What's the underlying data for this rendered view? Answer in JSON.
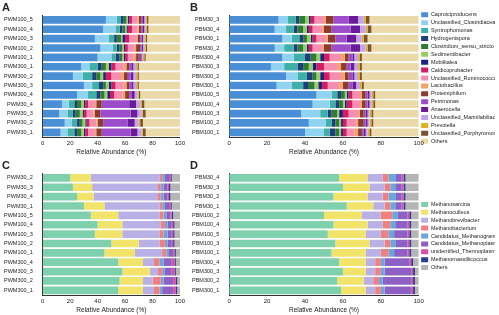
{
  "chart_data": [
    {
      "type": "bar",
      "title": "A",
      "orientation": "horizontal",
      "stacked": true,
      "grid": false,
      "x_label": "Relative Abundance (%)",
      "xlim": [
        0,
        100
      ],
      "xticks": [
        0,
        20,
        40,
        60,
        80,
        100
      ],
      "categories": [
        "PWM100_5",
        "PWM100_4",
        "PWM100_3",
        "PWM100_2",
        "PWM100_1",
        "PWM300_1",
        "PWM300_2",
        "PWM300_3",
        "PWM300_4",
        "PWM30_4",
        "PWM30_3",
        "PWM30_2",
        "PWM30_1"
      ],
      "series": [
        {
          "name": "Caproiciproducens",
          "color": "#4a8fd6",
          "values": [
            46,
            44,
            38,
            42,
            40,
            28,
            22,
            30,
            25,
            14,
            12,
            16,
            13
          ]
        },
        {
          "name": "Unclassified_Clostridiaceae_1",
          "color": "#8fd3f0",
          "values": [
            8,
            9,
            10,
            9,
            10,
            6,
            7,
            6,
            8,
            5,
            6,
            5,
            5
          ]
        },
        {
          "name": "Syntrophomonas",
          "color": "#3fb0a8",
          "values": [
            3,
            3,
            4,
            3,
            3,
            6,
            7,
            5,
            6,
            4,
            4,
            4,
            5
          ]
        },
        {
          "name": "Hydrogenispora",
          "color": "#1f3f7a",
          "values": [
            2,
            2,
            2,
            2,
            3,
            3,
            3,
            3,
            3,
            2,
            2,
            2,
            2
          ]
        },
        {
          "name": "Clostridium_sensu_stricto",
          "color": "#2e7d32",
          "values": [
            2,
            2,
            3,
            2,
            2,
            3,
            3,
            2,
            3,
            3,
            3,
            2,
            3
          ]
        },
        {
          "name": "Sedimentibacter",
          "color": "#9ccc65",
          "values": [
            1,
            1,
            1,
            1,
            1,
            2,
            2,
            2,
            2,
            2,
            2,
            2,
            2
          ]
        },
        {
          "name": "Mobilitalea",
          "color": "#1a237e",
          "values": [
            1,
            1,
            2,
            1,
            1,
            2,
            2,
            2,
            2,
            1,
            1,
            1,
            1
          ]
        },
        {
          "name": "Caldicoprobacter",
          "color": "#d81b60",
          "values": [
            2,
            3,
            3,
            2,
            2,
            3,
            4,
            3,
            3,
            2,
            2,
            2,
            2
          ]
        },
        {
          "name": "Unclassified_Ruminococcaceae",
          "color": "#f48fb1",
          "values": [
            4,
            4,
            5,
            5,
            4,
            6,
            7,
            6,
            6,
            5,
            5,
            5,
            5
          ]
        },
        {
          "name": "Lactobacillus",
          "color": "#f4a261",
          "values": [
            1,
            1,
            1,
            1,
            2,
            2,
            2,
            2,
            2,
            1,
            1,
            1,
            1
          ]
        },
        {
          "name": "Proteiniphilum",
          "color": "#8d3b2f",
          "values": [
            2,
            2,
            2,
            3,
            2,
            2,
            3,
            2,
            3,
            4,
            4,
            4,
            4
          ]
        },
        {
          "name": "Petrimonas",
          "color": "#9c4dcc",
          "values": [
            1,
            1,
            1,
            1,
            1,
            2,
            2,
            2,
            2,
            20,
            22,
            18,
            21
          ]
        },
        {
          "name": "Anaerocella",
          "color": "#6a1b9a",
          "values": [
            1,
            1,
            1,
            1,
            1,
            1,
            2,
            1,
            2,
            5,
            5,
            5,
            5
          ]
        },
        {
          "name": "Unclassified_Marinilabiliaceae",
          "color": "#c5a3e8",
          "values": [
            1,
            1,
            1,
            1,
            1,
            2,
            2,
            2,
            2,
            3,
            3,
            3,
            3
          ]
        },
        {
          "name": "Prevotella",
          "color": "#e0b020",
          "values": [
            1,
            1,
            1,
            1,
            1,
            1,
            1,
            1,
            1,
            1,
            1,
            1,
            1
          ]
        },
        {
          "name": "Unclassified_Porphyromonadaceae",
          "color": "#7a5230",
          "values": [
            1,
            1,
            1,
            1,
            1,
            1,
            1,
            1,
            1,
            2,
            2,
            2,
            2
          ]
        },
        {
          "name": "Others",
          "color": "#ead9a9",
          "values": [
            23,
            23,
            24,
            24,
            25,
            30,
            30,
            30,
            29,
            26,
            25,
            27,
            25
          ]
        }
      ]
    },
    {
      "type": "bar",
      "title": "B",
      "orientation": "horizontal",
      "stacked": true,
      "grid": false,
      "legend": "right",
      "x_label": "Relative Abundance (%)",
      "xlim": [
        0,
        100
      ],
      "xticks": [
        0,
        20,
        40,
        60,
        80,
        100
      ],
      "categories": [
        "PBM30_3",
        "PBM30_4",
        "PBM30_1",
        "PBM30_2",
        "PBM300_4",
        "PBM300_3",
        "PBM300_2",
        "PBM300_1",
        "PBM100_5",
        "PBM100_4",
        "PBM100_3",
        "PBM100_2",
        "PBM100_1"
      ],
      "series": [
        {
          "name": "Caproiciproducens",
          "color": "#4a8fd6",
          "values": [
            26,
            24,
            28,
            24,
            28,
            22,
            30,
            25,
            46,
            44,
            38,
            42,
            40
          ]
        },
        {
          "name": "Unclassified_Clostridiaceae_1",
          "color": "#8fd3f0",
          "values": [
            5,
            6,
            5,
            5,
            6,
            7,
            6,
            8,
            8,
            9,
            10,
            9,
            10
          ]
        },
        {
          "name": "Syntrophomonas",
          "color": "#3fb0a8",
          "values": [
            4,
            4,
            4,
            5,
            6,
            7,
            5,
            6,
            3,
            3,
            4,
            3,
            3
          ]
        },
        {
          "name": "Hydrogenispora",
          "color": "#1f3f7a",
          "values": [
            2,
            2,
            2,
            2,
            3,
            3,
            3,
            3,
            2,
            2,
            2,
            2,
            3
          ]
        },
        {
          "name": "Clostridium_sensu_stricto",
          "color": "#2e7d32",
          "values": [
            3,
            3,
            2,
            3,
            3,
            3,
            2,
            3,
            2,
            2,
            3,
            2,
            2
          ]
        },
        {
          "name": "Sedimentibacter",
          "color": "#9ccc65",
          "values": [
            2,
            2,
            2,
            2,
            2,
            2,
            2,
            2,
            1,
            1,
            1,
            1,
            1
          ]
        },
        {
          "name": "Mobilitalea",
          "color": "#1a237e",
          "values": [
            1,
            1,
            1,
            1,
            2,
            2,
            2,
            2,
            1,
            1,
            2,
            1,
            1
          ]
        },
        {
          "name": "Caldicoprobacter",
          "color": "#d81b60",
          "values": [
            2,
            2,
            2,
            2,
            3,
            4,
            3,
            3,
            2,
            3,
            3,
            2,
            2
          ]
        },
        {
          "name": "Unclassified_Ruminococcaceae",
          "color": "#f48fb1",
          "values": [
            5,
            5,
            5,
            5,
            6,
            7,
            6,
            6,
            4,
            4,
            5,
            5,
            4
          ]
        },
        {
          "name": "Lactobacillus",
          "color": "#f4a261",
          "values": [
            1,
            1,
            1,
            1,
            2,
            2,
            2,
            2,
            1,
            1,
            1,
            1,
            2
          ]
        },
        {
          "name": "Proteiniphilum",
          "color": "#8d3b2f",
          "values": [
            4,
            4,
            4,
            4,
            2,
            3,
            2,
            3,
            2,
            2,
            2,
            3,
            2
          ]
        },
        {
          "name": "Petrimonas",
          "color": "#9c4dcc",
          "values": [
            8,
            10,
            6,
            10,
            2,
            2,
            2,
            2,
            1,
            1,
            1,
            1,
            1
          ]
        },
        {
          "name": "Anaerocella",
          "color": "#6a1b9a",
          "values": [
            5,
            5,
            5,
            5,
            1,
            2,
            1,
            2,
            1,
            1,
            1,
            1,
            1
          ]
        },
        {
          "name": "Unclassified_Marinilabiliaceae",
          "color": "#c5a3e8",
          "values": [
            3,
            3,
            3,
            3,
            2,
            2,
            2,
            2,
            1,
            1,
            1,
            1,
            1
          ]
        },
        {
          "name": "Prevotella",
          "color": "#e0b020",
          "values": [
            1,
            1,
            1,
            1,
            1,
            1,
            1,
            1,
            1,
            1,
            1,
            1,
            1
          ]
        },
        {
          "name": "Unclassified_Porphyromonadaceae",
          "color": "#7a5230",
          "values": [
            2,
            2,
            2,
            2,
            1,
            1,
            1,
            1,
            1,
            1,
            1,
            1,
            1
          ]
        },
        {
          "name": "Others",
          "color": "#ead9a9",
          "values": [
            26,
            25,
            27,
            25,
            30,
            30,
            30,
            29,
            23,
            23,
            24,
            24,
            25
          ]
        }
      ]
    },
    {
      "type": "bar",
      "title": "C",
      "orientation": "horizontal",
      "stacked": true,
      "grid": false,
      "x_label": "Relative Abundance (%)",
      "xlim": [
        0,
        100
      ],
      "xticks": [
        0,
        20,
        40,
        60,
        80,
        100
      ],
      "categories": [
        "PWM30_2",
        "PWM30_3",
        "PWM30_4",
        "PWM30_1",
        "PWM100_5",
        "PWM100_4",
        "PWM100_3",
        "PWM100_2",
        "PWM100_1",
        "PWM300_4",
        "PWM300_3",
        "PWM300_2",
        "PWM300_1"
      ],
      "series": [
        {
          "name": "Methanosarcina",
          "color": "#7fd1ae",
          "values": [
            20,
            22,
            25,
            30,
            35,
            40,
            38,
            50,
            45,
            55,
            58,
            56,
            55
          ]
        },
        {
          "name": "Methanoculleus",
          "color": "#f2e36b",
          "values": [
            15,
            14,
            12,
            15,
            20,
            18,
            20,
            20,
            22,
            18,
            20,
            17,
            18
          ]
        },
        {
          "name": "Methanobrevibacter",
          "color": "#b9b0e6",
          "values": [
            50,
            48,
            47,
            40,
            30,
            28,
            27,
            15,
            20,
            8,
            6,
            7,
            8
          ]
        },
        {
          "name": "Methanobacterium",
          "color": "#f07f7f",
          "values": [
            2,
            2,
            2,
            2,
            3,
            3,
            3,
            4,
            3,
            4,
            3,
            6,
            4
          ]
        },
        {
          "name": "Candidatus_Methanogranum",
          "color": "#6aa6dc",
          "values": [
            2,
            2,
            2,
            2,
            2,
            2,
            3,
            2,
            2,
            3,
            2,
            2,
            2
          ]
        },
        {
          "name": "Candidatus_Methanoplasma",
          "color": "#8e5fc4",
          "values": [
            3,
            3,
            3,
            3,
            3,
            3,
            3,
            3,
            3,
            6,
            5,
            7,
            8
          ]
        },
        {
          "name": "unidentified_Thermoplasmatales",
          "color": "#d94fa8",
          "values": [
            1,
            1,
            1,
            1,
            1,
            1,
            1,
            1,
            1,
            2,
            2,
            2,
            2
          ]
        },
        {
          "name": "Methanomassiliicoccus",
          "color": "#2a3f8f",
          "values": [
            1,
            1,
            1,
            1,
            1,
            1,
            1,
            1,
            1,
            1,
            1,
            1,
            1
          ]
        },
        {
          "name": "Others",
          "color": "#b5b5b5",
          "values": [
            6,
            7,
            7,
            6,
            5,
            4,
            4,
            4,
            3,
            3,
            3,
            2,
            2
          ]
        }
      ]
    },
    {
      "type": "bar",
      "title": "D",
      "orientation": "horizontal",
      "stacked": true,
      "grid": false,
      "legend": "right",
      "x_label": "Relative Abundance (%)",
      "xlim": [
        0,
        100
      ],
      "xticks": [
        0,
        20,
        40,
        60,
        80,
        100
      ],
      "categories": [
        "PBM30_4",
        "PBM30_3",
        "PBM30_2",
        "PBM30_1",
        "PBM100_2",
        "PBM100_4",
        "PBM100_5",
        "PBM100_3",
        "PBM100_1",
        "PBM300_4",
        "PBM300_3",
        "PBM300_2",
        "PBM300_1"
      ],
      "series": [
        {
          "name": "Methanosarcina",
          "color": "#7fd1ae",
          "values": [
            58,
            60,
            55,
            62,
            50,
            55,
            52,
            56,
            54,
            58,
            60,
            57,
            59
          ]
        },
        {
          "name": "Methanoculleus",
          "color": "#f2e36b",
          "values": [
            15,
            14,
            18,
            14,
            20,
            18,
            20,
            18,
            18,
            14,
            12,
            14,
            13
          ]
        },
        {
          "name": "Methanobrevibacter",
          "color": "#b9b0e6",
          "values": [
            8,
            8,
            8,
            6,
            10,
            8,
            8,
            8,
            8,
            5,
            5,
            5,
            5
          ]
        },
        {
          "name": "Methanobacterium",
          "color": "#f07f7f",
          "values": [
            3,
            3,
            3,
            3,
            6,
            4,
            4,
            3,
            4,
            3,
            3,
            3,
            3
          ]
        },
        {
          "name": "Candidatus_Methanogranum",
          "color": "#6aa6dc",
          "values": [
            4,
            3,
            4,
            3,
            3,
            3,
            3,
            3,
            3,
            2,
            2,
            2,
            2
          ]
        },
        {
          "name": "Candidatus_Methanoplasma",
          "color": "#8e5fc4",
          "values": [
            3,
            3,
            3,
            3,
            5,
            6,
            7,
            6,
            7,
            13,
            14,
            15,
            14
          ]
        },
        {
          "name": "unidentified_Thermoplasmatales",
          "color": "#d94fa8",
          "values": [
            1,
            1,
            1,
            1,
            1,
            1,
            1,
            1,
            1,
            1,
            1,
            1,
            1
          ]
        },
        {
          "name": "Methanomassiliicoccus",
          "color": "#2a3f8f",
          "values": [
            1,
            1,
            1,
            1,
            1,
            1,
            1,
            1,
            1,
            1,
            1,
            1,
            1
          ]
        },
        {
          "name": "Others",
          "color": "#b5b5b5",
          "values": [
            7,
            7,
            7,
            7,
            4,
            4,
            4,
            4,
            4,
            3,
            2,
            2,
            2
          ]
        }
      ]
    }
  ]
}
